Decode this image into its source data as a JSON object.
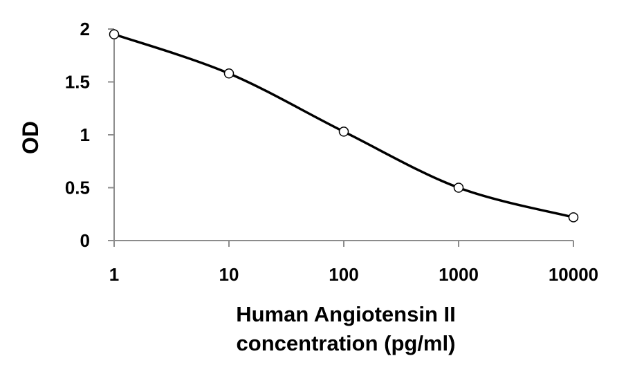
{
  "chart_data": {
    "type": "line",
    "x_scale": "log",
    "x": [
      1,
      10,
      100,
      1000,
      10000
    ],
    "series": [
      {
        "values": [
          1.95,
          1.58,
          1.03,
          0.5,
          0.22
        ],
        "color": "#000000",
        "marker": "open-circle",
        "smooth": true
      }
    ],
    "ylabel": "OD",
    "xlabel_lines": [
      "Human Angiotensin II",
      "concentration (pg/ml)"
    ],
    "ylim": [
      0,
      2
    ],
    "xlim": [
      1,
      10000
    ],
    "y_ticks": [
      0,
      0.5,
      1,
      1.5,
      2
    ],
    "y_tick_labels": [
      "0",
      "0.5",
      "1",
      "1.5",
      "2"
    ],
    "x_ticks": [
      1,
      10,
      100,
      1000,
      10000
    ],
    "x_tick_labels": [
      "1",
      "10",
      "100",
      "1000",
      "10000"
    ],
    "grid": false,
    "legend": "none"
  }
}
